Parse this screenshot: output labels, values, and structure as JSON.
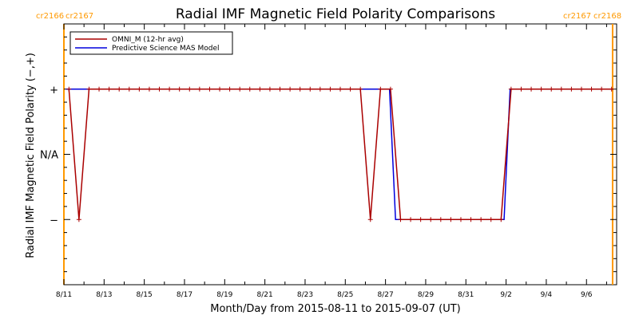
{
  "chart_data": {
    "type": "line",
    "title": "Radial IMF Magnetic Field Polarity Comparisons",
    "xlabel": "Month/Day from 2015-08-11 to 2015-09-07 (UT)",
    "ylabel": "Radial IMF Magnetic Field Polarity (−,+)",
    "x_range_days": [
      0,
      27.5
    ],
    "x_ticks": [
      {
        "day": 0,
        "label": "8/11"
      },
      {
        "day": 2,
        "label": "8/13"
      },
      {
        "day": 4,
        "label": "8/15"
      },
      {
        "day": 6,
        "label": "8/17"
      },
      {
        "day": 8,
        "label": "8/19"
      },
      {
        "day": 10,
        "label": "8/21"
      },
      {
        "day": 12,
        "label": "8/23"
      },
      {
        "day": 14,
        "label": "8/25"
      },
      {
        "day": 16,
        "label": "8/27"
      },
      {
        "day": 18,
        "label": "8/29"
      },
      {
        "day": 20,
        "label": "8/31"
      },
      {
        "day": 22,
        "label": "9/2"
      },
      {
        "day": 24,
        "label": "9/4"
      },
      {
        "day": 26,
        "label": "9/6"
      }
    ],
    "y_ticks": [
      {
        "value": 1,
        "label": "+"
      },
      {
        "value": 0,
        "label": "N/A"
      },
      {
        "value": -1,
        "label": "−"
      }
    ],
    "y_range": [
      -2,
      2
    ],
    "carrington": {
      "color": "#ff9900",
      "left_labels": [
        "cr2166",
        "cr2167"
      ],
      "right_labels": [
        "cr2167",
        "cr2168"
      ],
      "boundaries_days": [
        0,
        27.3
      ]
    },
    "legend": {
      "position": "top-left"
    },
    "series": [
      {
        "name": "OMNI_M (12-hr avg)",
        "color": "#aa0000",
        "markers": true,
        "points": [
          [
            0.25,
            1
          ],
          [
            0.75,
            -1
          ],
          [
            1.25,
            1
          ],
          [
            1.75,
            1
          ],
          [
            2.25,
            1
          ],
          [
            2.75,
            1
          ],
          [
            3.25,
            1
          ],
          [
            3.75,
            1
          ],
          [
            4.25,
            1
          ],
          [
            4.75,
            1
          ],
          [
            5.25,
            1
          ],
          [
            5.75,
            1
          ],
          [
            6.25,
            1
          ],
          [
            6.75,
            1
          ],
          [
            7.25,
            1
          ],
          [
            7.75,
            1
          ],
          [
            8.25,
            1
          ],
          [
            8.75,
            1
          ],
          [
            9.25,
            1
          ],
          [
            9.75,
            1
          ],
          [
            10.25,
            1
          ],
          [
            10.75,
            1
          ],
          [
            11.25,
            1
          ],
          [
            11.75,
            1
          ],
          [
            12.25,
            1
          ],
          [
            12.75,
            1
          ],
          [
            13.25,
            1
          ],
          [
            13.75,
            1
          ],
          [
            14.25,
            1
          ],
          [
            14.75,
            1
          ],
          [
            15.25,
            -1
          ],
          [
            15.75,
            1
          ],
          [
            16.25,
            1
          ],
          [
            16.75,
            -1
          ],
          [
            17.25,
            -1
          ],
          [
            17.75,
            -1
          ],
          [
            18.25,
            -1
          ],
          [
            18.75,
            -1
          ],
          [
            19.25,
            -1
          ],
          [
            19.75,
            -1
          ],
          [
            20.25,
            -1
          ],
          [
            20.75,
            -1
          ],
          [
            21.25,
            -1
          ],
          [
            21.75,
            -1
          ],
          [
            22.25,
            1
          ],
          [
            22.75,
            1
          ],
          [
            23.25,
            1
          ],
          [
            23.75,
            1
          ],
          [
            24.25,
            1
          ],
          [
            24.75,
            1
          ],
          [
            25.25,
            1
          ],
          [
            25.75,
            1
          ],
          [
            26.25,
            1
          ],
          [
            26.75,
            1
          ],
          [
            27.25,
            1
          ]
        ]
      },
      {
        "name": "Predictive Science MAS Model",
        "color": "#0000dd",
        "markers": false,
        "points": [
          [
            0.1,
            1
          ],
          [
            16.2,
            1
          ],
          [
            16.5,
            -1
          ],
          [
            21.9,
            -1
          ],
          [
            22.2,
            1
          ],
          [
            27.3,
            1
          ]
        ]
      }
    ]
  }
}
